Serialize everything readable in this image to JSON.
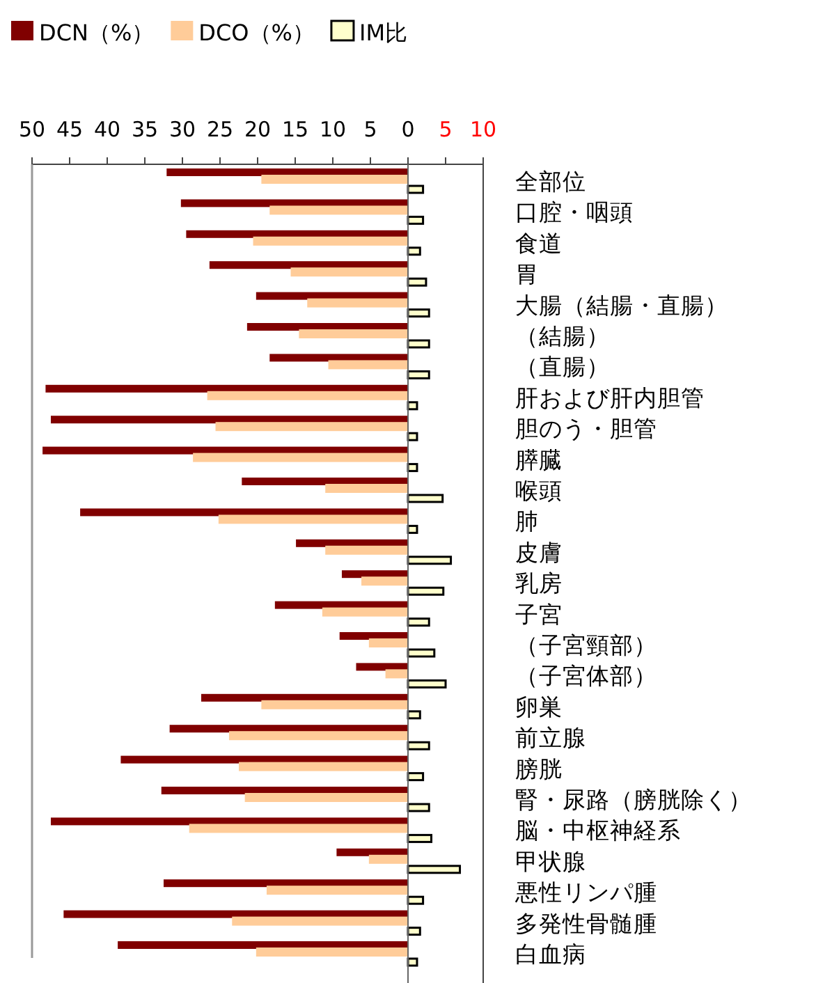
{
  "chart_data": {
    "type": "bar",
    "orientation": "horizontal",
    "categories": [
      "全部位",
      "口腔・咽頭",
      "食道",
      "胃",
      "大腸（結腸・直腸）",
      "（結腸）",
      "（直腸）",
      "肝および肝内胆管",
      "胆のう・胆管",
      "膵臓",
      "喉頭",
      "肺",
      "皮膚",
      "乳房",
      "子宮",
      "（子宮頸部）",
      "（子宮体部）",
      "卵巣",
      "前立腺",
      "膀胱",
      "腎・尿路（膀胱除く）",
      "脳・中枢神経系",
      "甲状腺",
      "悪性リンパ腫",
      "多発性骨髄腫",
      "白血病"
    ],
    "series": [
      {
        "name": "DCN（%）",
        "color": "#800000",
        "values": [
          32.1,
          30.2,
          29.5,
          26.4,
          20.2,
          21.4,
          18.4,
          48.2,
          47.5,
          48.6,
          22.1,
          43.6,
          14.9,
          8.8,
          17.7,
          9.1,
          6.9,
          27.5,
          31.7,
          38.2,
          32.8,
          47.5,
          9.5,
          32.5,
          45.8,
          38.6
        ]
      },
      {
        "name": "DCO（%）",
        "color": "#ffcc99",
        "values": [
          19.5,
          18.4,
          20.6,
          15.6,
          13.4,
          14.5,
          10.6,
          26.7,
          25.6,
          28.6,
          11.0,
          25.2,
          11.0,
          6.2,
          11.4,
          5.2,
          3.0,
          19.5,
          23.8,
          22.5,
          21.7,
          29.1,
          5.2,
          18.8,
          23.4,
          20.2
        ]
      },
      {
        "name": "IM比",
        "color": "#ffffcc",
        "axis": "x2",
        "values": [
          2.0,
          2.0,
          1.6,
          2.4,
          2.8,
          2.8,
          2.8,
          1.2,
          1.2,
          1.2,
          4.6,
          1.2,
          5.7,
          4.7,
          2.8,
          3.5,
          5.0,
          1.6,
          2.8,
          2.0,
          2.8,
          3.1,
          6.9,
          2.0,
          1.6,
          1.2
        ]
      }
    ],
    "xlim": [
      50,
      -10
    ],
    "xticks": [
      50,
      45,
      40,
      35,
      30,
      25,
      20,
      15,
      10,
      5,
      0
    ],
    "x2lim": [
      -50,
      10
    ],
    "x2ticks": [
      5,
      10
    ],
    "legend": "top"
  }
}
